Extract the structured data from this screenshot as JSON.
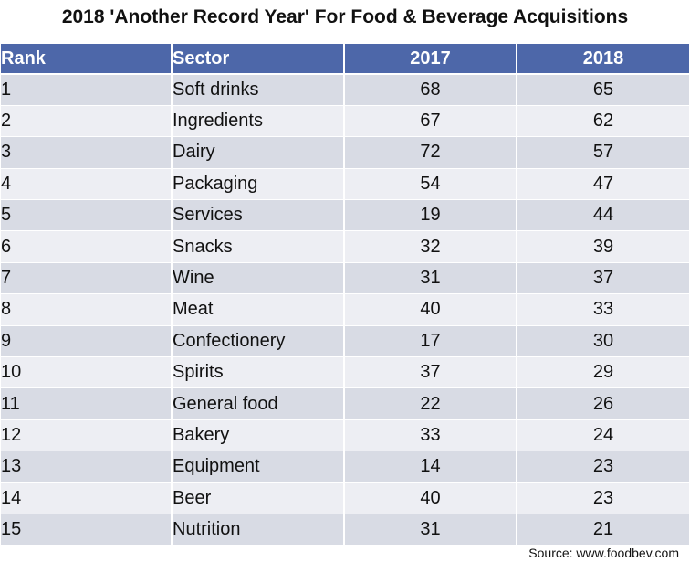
{
  "title": "2018 'Another Record Year' For Food & Beverage Acquisitions",
  "source": "Source: www.foodbev.com",
  "chart_data": {
    "type": "table",
    "title": "2018 'Another Record Year' For Food & Beverage Acquisitions",
    "columns": [
      "Rank",
      "Sector",
      "2017",
      "2018"
    ],
    "rows": [
      [
        "1",
        "Soft drinks",
        "68",
        "65"
      ],
      [
        "2",
        "Ingredients",
        "67",
        "62"
      ],
      [
        "3",
        "Dairy",
        "72",
        "57"
      ],
      [
        "4",
        "Packaging",
        "54",
        "47"
      ],
      [
        "5",
        "Services",
        "19",
        "44"
      ],
      [
        "6",
        "Snacks",
        "32",
        "39"
      ],
      [
        "7",
        "Wine",
        "31",
        "37"
      ],
      [
        "8",
        "Meat",
        "40",
        "33"
      ],
      [
        "9",
        "Confectionery",
        "17",
        "30"
      ],
      [
        "10",
        "Spirits",
        "37",
        "29"
      ],
      [
        "11",
        "General food",
        "22",
        "26"
      ],
      [
        "12",
        "Bakery",
        "33",
        "24"
      ],
      [
        "13",
        "Equipment",
        "14",
        "23"
      ],
      [
        "14",
        "Beer",
        "40",
        "23"
      ],
      [
        "15",
        "Nutrition",
        "31",
        "21"
      ]
    ]
  },
  "colors": {
    "header_bg": "#4d67a9",
    "row_odd": "#d8dbe4",
    "row_even": "#edeef3"
  }
}
